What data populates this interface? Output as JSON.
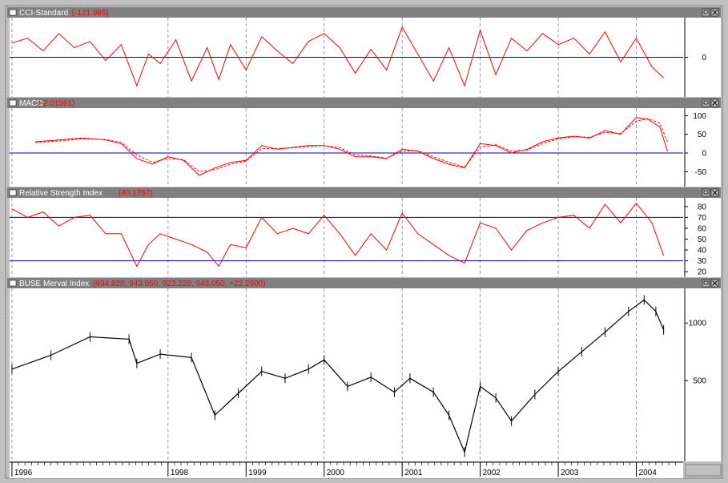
{
  "chart_data": [
    {
      "type": "line",
      "title": "CCI-Standard",
      "value_label": "(-121.965)",
      "reference_line": 0,
      "y_ticks": [
        "0"
      ],
      "ylim": [
        -250,
        250
      ],
      "series": [
        {
          "color": "#ff0000",
          "style": "solid",
          "x": [
            1996.0,
            1996.2,
            1996.4,
            1996.6,
            1996.8,
            1997.0,
            1997.2,
            1997.4,
            1997.6,
            1997.75,
            1997.9,
            1998.1,
            1998.3,
            1998.5,
            1998.65,
            1998.8,
            1999.0,
            1999.2,
            1999.4,
            1999.6,
            1999.8,
            2000.0,
            2000.2,
            2000.4,
            2000.6,
            2000.8,
            2001.0,
            2001.2,
            2001.4,
            2001.6,
            2001.8,
            2002.0,
            2002.2,
            2002.4,
            2002.6,
            2002.8,
            2003.0,
            2003.2,
            2003.4,
            2003.6,
            2003.8,
            2004.0,
            2004.2,
            2004.35
          ],
          "y": [
            90,
            120,
            40,
            150,
            60,
            100,
            -20,
            80,
            -180,
            20,
            -40,
            110,
            -150,
            60,
            -140,
            80,
            -80,
            130,
            40,
            -40,
            100,
            150,
            60,
            -100,
            50,
            -80,
            190,
            20,
            -150,
            60,
            -180,
            170,
            -110,
            120,
            40,
            150,
            80,
            120,
            20,
            160,
            -30,
            120,
            -60,
            -130
          ]
        }
      ]
    },
    {
      "type": "line",
      "title": "MACD",
      "value_label": "(-2.01361)",
      "reference_line": 0,
      "y_ticks": [
        -50,
        0,
        50,
        100
      ],
      "ylim": [
        -90,
        120
      ],
      "series": [
        {
          "color": "#ff0000",
          "style": "solid",
          "x": [
            1996.3,
            1996.6,
            1996.9,
            1997.2,
            1997.4,
            1997.6,
            1997.8,
            1998.0,
            1998.2,
            1998.4,
            1998.6,
            1998.8,
            1999.0,
            1999.2,
            1999.4,
            1999.6,
            1999.8,
            2000.0,
            2000.2,
            2000.4,
            2000.6,
            2000.8,
            2001.0,
            2001.2,
            2001.4,
            2001.6,
            2001.8,
            2002.0,
            2002.2,
            2002.4,
            2002.6,
            2002.8,
            2003.0,
            2003.2,
            2003.4,
            2003.6,
            2003.8,
            2004.0,
            2004.15,
            2004.3,
            2004.4
          ],
          "y": [
            30,
            35,
            40,
            35,
            25,
            -15,
            -30,
            -10,
            -20,
            -60,
            -40,
            -25,
            -20,
            20,
            10,
            15,
            20,
            20,
            10,
            -10,
            -10,
            -15,
            10,
            5,
            -15,
            -30,
            -40,
            25,
            20,
            0,
            10,
            30,
            40,
            45,
            40,
            60,
            50,
            95,
            90,
            70,
            5
          ]
        },
        {
          "color": "#ff0000",
          "style": "dashed",
          "x": [
            1996.3,
            1996.6,
            1996.9,
            1997.2,
            1997.4,
            1997.6,
            1997.8,
            1998.0,
            1998.2,
            1998.4,
            1998.6,
            1998.8,
            1999.0,
            1999.2,
            1999.4,
            1999.6,
            1999.8,
            2000.0,
            2000.2,
            2000.4,
            2000.6,
            2000.8,
            2001.0,
            2001.2,
            2001.4,
            2001.6,
            2001.8,
            2002.0,
            2002.2,
            2002.4,
            2002.6,
            2002.8,
            2003.0,
            2003.2,
            2003.4,
            2003.6,
            2003.8,
            2004.0,
            2004.15,
            2004.3,
            2004.4
          ],
          "y": [
            28,
            32,
            38,
            36,
            28,
            -5,
            -25,
            -15,
            -18,
            -50,
            -45,
            -30,
            -22,
            12,
            12,
            14,
            18,
            20,
            14,
            -5,
            -8,
            -14,
            5,
            6,
            -10,
            -25,
            -38,
            15,
            22,
            5,
            8,
            25,
            38,
            44,
            42,
            55,
            52,
            85,
            92,
            80,
            30
          ]
        }
      ]
    },
    {
      "type": "line",
      "title": "Relative Strength Index",
      "value_label": "(40.1757)",
      "reference_lines": [
        30,
        70
      ],
      "y_ticks": [
        20,
        30,
        40,
        50,
        60,
        70,
        80
      ],
      "ylim": [
        15,
        88
      ],
      "series": [
        {
          "color": "#ff0000",
          "style": "solid",
          "x": [
            1996.0,
            1996.2,
            1996.4,
            1996.6,
            1996.8,
            1997.0,
            1997.2,
            1997.4,
            1997.6,
            1997.75,
            1997.9,
            1998.1,
            1998.3,
            1998.5,
            1998.65,
            1998.8,
            1999.0,
            1999.2,
            1999.4,
            1999.6,
            1999.8,
            2000.0,
            2000.2,
            2000.4,
            2000.6,
            2000.8,
            2001.0,
            2001.2,
            2001.4,
            2001.6,
            2001.8,
            2002.0,
            2002.2,
            2002.4,
            2002.6,
            2002.8,
            2003.0,
            2003.2,
            2003.4,
            2003.6,
            2003.8,
            2004.0,
            2004.2,
            2004.35
          ],
          "y": [
            78,
            70,
            75,
            62,
            70,
            72,
            55,
            55,
            25,
            45,
            55,
            50,
            45,
            38,
            25,
            45,
            42,
            70,
            55,
            60,
            55,
            72,
            55,
            35,
            55,
            40,
            74,
            55,
            45,
            35,
            28,
            65,
            60,
            40,
            58,
            65,
            70,
            72,
            60,
            82,
            65,
            83,
            65,
            35
          ]
        }
      ]
    },
    {
      "type": "bar",
      "title": "BUSE Merval Index",
      "value_label": "(934.920, 943.050, 923.220, 943.050, +22.2600)",
      "y_ticks": [
        500,
        1000
      ],
      "ylim": [
        -200,
        1300
      ],
      "series": [
        {
          "color": "#000000",
          "style": "ohlc",
          "x": [
            1996.0,
            1996.5,
            1997.0,
            1997.5,
            1997.6,
            1997.9,
            1998.3,
            1998.6,
            1998.9,
            1999.2,
            1999.5,
            1999.8,
            2000.0,
            2000.3,
            2000.6,
            2000.9,
            2001.1,
            2001.4,
            2001.6,
            2001.8,
            2002.0,
            2002.2,
            2002.4,
            2002.7,
            2003.0,
            2003.3,
            2003.6,
            2003.9,
            2004.1,
            2004.25,
            2004.35
          ],
          "y": [
            600,
            720,
            880,
            860,
            650,
            730,
            700,
            200,
            390,
            580,
            520,
            600,
            680,
            450,
            530,
            400,
            520,
            400,
            200,
            -120,
            450,
            350,
            150,
            380,
            580,
            750,
            920,
            1100,
            1200,
            1100,
            940
          ]
        }
      ]
    }
  ],
  "x_axis": {
    "labels": [
      "1996",
      "1998",
      "1999",
      "2000",
      "2001",
      "2002",
      "2003",
      "2004"
    ],
    "positions": [
      1996.0,
      1998.0,
      1999.0,
      2000.0,
      2001.0,
      2002.0,
      2003.0,
      2004.0
    ],
    "range": [
      1995.97,
      2004.6
    ]
  }
}
